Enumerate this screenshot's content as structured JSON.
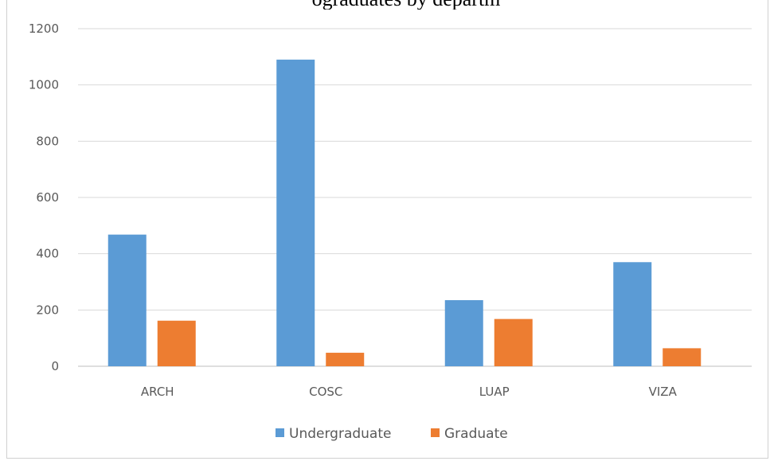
{
  "chart_data": {
    "type": "bar",
    "title": "ograduates by departm",
    "categories": [
      "ARCH",
      "COSC",
      "LUAP",
      "VIZA"
    ],
    "series": [
      {
        "name": "Undergraduate",
        "color": "#5B9BD5",
        "values": [
          468,
          1090,
          235,
          370
        ]
      },
      {
        "name": "Graduate",
        "color": "#ED7D31",
        "values": [
          162,
          48,
          168,
          64
        ]
      }
    ],
    "ylim": [
      0,
      1200
    ],
    "yticks": [
      0,
      200,
      400,
      600,
      800,
      1000,
      1200
    ],
    "grid": true,
    "legend": "bottom"
  }
}
